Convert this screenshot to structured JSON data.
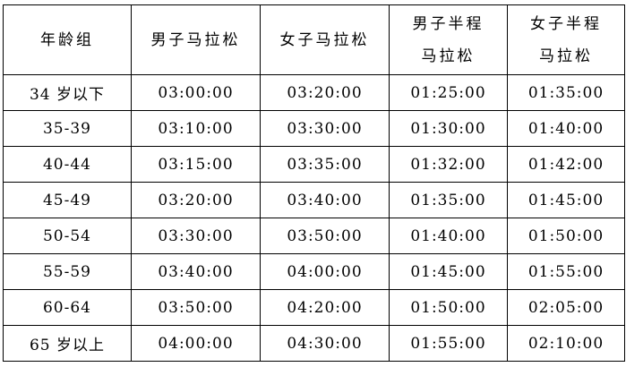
{
  "headers": [
    "年龄组",
    "男子马拉松",
    "女子马拉松",
    "男子半程马拉松",
    "女子半程马拉松"
  ],
  "header_lines": [
    [
      "年龄组"
    ],
    [
      "男子马拉松"
    ],
    [
      "女子马拉松"
    ],
    [
      "男子半程",
      "马拉松"
    ],
    [
      "女子半程",
      "马拉松"
    ]
  ],
  "rows": [
    [
      "34 岁以下",
      "03:00:00",
      "03:20:00",
      "01:25:00",
      "01:35:00"
    ],
    [
      "35-39",
      "03:10:00",
      "03:30:00",
      "01:30:00",
      "01:40:00"
    ],
    [
      "40-44",
      "03:15:00",
      "03:35:00",
      "01:32:00",
      "01:42:00"
    ],
    [
      "45-49",
      "03:20:00",
      "03:40:00",
      "01:35:00",
      "01:45:00"
    ],
    [
      "50-54",
      "03:30:00",
      "03:50:00",
      "01:40:00",
      "01:50:00"
    ],
    [
      "55-59",
      "03:40:00",
      "04:00:00",
      "01:45:00",
      "01:55:00"
    ],
    [
      "60-64",
      "03:50:00",
      "04:20:00",
      "01:50:00",
      "02:05:00"
    ],
    [
      "65 岁以上",
      "04:00:00",
      "04:30:00",
      "01:55:00",
      "02:10:00"
    ]
  ]
}
